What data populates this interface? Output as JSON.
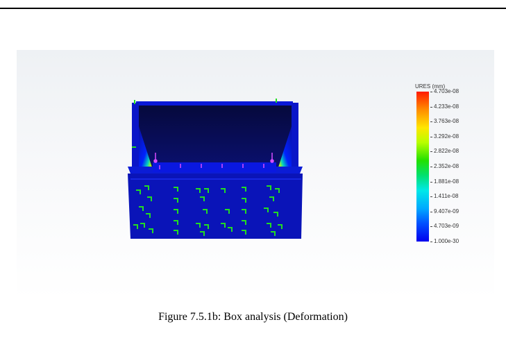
{
  "figure": {
    "caption": "Figure 7.5.1b: Box analysis (Deformation)",
    "image_description_semantic": "finite element analysis result of a box, deformation contour"
  },
  "legend": {
    "title": "URES (mm)",
    "labels": [
      "4.703e-08",
      "4.233e-08",
      "3.763e-08",
      "3.292e-08",
      "2.822e-08",
      "2.352e-08",
      "1.881e-08",
      "1.411e-08",
      "9.407e-09",
      "4.703e-09",
      "1.000e-30"
    ],
    "colors": {
      "max": "#ff1a00",
      "min": "#0000ee",
      "model_body": "#0a16c8",
      "fixture_arrows": "#22dd22",
      "load_arrows": "#d94cff"
    }
  }
}
